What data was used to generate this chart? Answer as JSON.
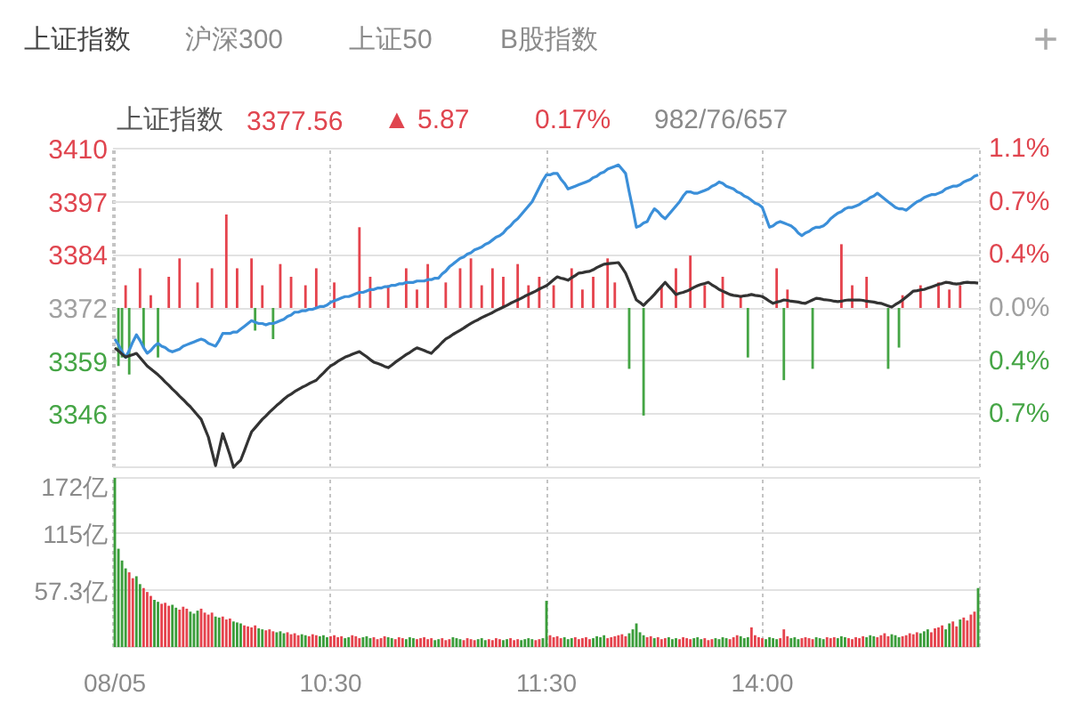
{
  "chart_data": [
    {
      "type": "line",
      "title": "上证指数",
      "annotations": [
        "上证指数",
        "沪深300",
        "上证50",
        "B股指数",
        "+",
        "3377.56",
        "▲ 5.87",
        "0.17%",
        "982/76/657"
      ],
      "categories": [
        null,
        null,
        null,
        null,
        null,
        null,
        null,
        null,
        null,
        null,
        null,
        null,
        null,
        null,
        null,
        null,
        null,
        null,
        null,
        null,
        null,
        null,
        null,
        null,
        null,
        null,
        null,
        null,
        null,
        null,
        null,
        null,
        null,
        null,
        null,
        null,
        null,
        null,
        null,
        null,
        null,
        null,
        null,
        null,
        null,
        null,
        null,
        null,
        null,
        null,
        null,
        null,
        null,
        null,
        null,
        null,
        null,
        null,
        null,
        null,
        null,
        null,
        null,
        null,
        null,
        null,
        null,
        null,
        null,
        null,
        null,
        null,
        null,
        null,
        null,
        null,
        null,
        null,
        null,
        null,
        null,
        null,
        null,
        null,
        null,
        null,
        null,
        null,
        null,
        null,
        null,
        null,
        null,
        null,
        null,
        null,
        null,
        null,
        null,
        null,
        null,
        null,
        null,
        null,
        null,
        null,
        null,
        null,
        null,
        null,
        null,
        null,
        null,
        null,
        null,
        null,
        null,
        null,
        null,
        null,
        null,
        null,
        null,
        null,
        null,
        null,
        null,
        null,
        null,
        null,
        null,
        null,
        null,
        null,
        null,
        null,
        null,
        null,
        null,
        null,
        null,
        null,
        null,
        null,
        null,
        null,
        null,
        null,
        null,
        null,
        null,
        null,
        null,
        null,
        null,
        null,
        null,
        null,
        null,
        null,
        null,
        null,
        null,
        null,
        null,
        null,
        null,
        null,
        null,
        null,
        null,
        null,
        null,
        null,
        null,
        null,
        null,
        null,
        null,
        null,
        null,
        null,
        null,
        null,
        null,
        null,
        null,
        null,
        null,
        null,
        null,
        null,
        null,
        null,
        null,
        null,
        null,
        null,
        null,
        null,
        null,
        null,
        null,
        null,
        null,
        null,
        null,
        null,
        null,
        null,
        null,
        null,
        null,
        null,
        null,
        null,
        null,
        null,
        null,
        null,
        null,
        null,
        null,
        null,
        null,
        null,
        null,
        null,
        null,
        null,
        null,
        null,
        null,
        null,
        null,
        null,
        null,
        null,
        null,
        null,
        null
      ],
      "ylim": [
        3333.8,
        3409.6
      ],
      "yticks": [
        {
          "value": 3346.4,
          "label": "3346"
        },
        {
          "value": 3359.1,
          "label": "3359"
        },
        {
          "value": 3371.7,
          "label": "3372"
        },
        {
          "value": 3384.3,
          "label": "3384"
        },
        {
          "value": 3397.0,
          "label": "3397"
        },
        {
          "value": 3409.6,
          "label": "3410"
        }
      ],
      "y2lim": [
        -1.125,
        1.125
      ],
      "y2ticks": [
        {
          "value": -0.75,
          "label": "0.7%"
        },
        {
          "value": -0.375,
          "label": "0.4%"
        },
        {
          "value": 0,
          "label": "0.0%"
        },
        {
          "value": 0.375,
          "label": "0.4%"
        },
        {
          "value": 0.75,
          "label": "0.7%"
        },
        {
          "value": 1.125,
          "label": "1.1%"
        }
      ],
      "grid": true,
      "tick_labels": "y",
      "series": [
        {
          "type": "bar",
          "axis": "y2",
          "color": "#e5434d",
          "values": [
            null,
            null,
            null,
            0.16,
            null,
            null,
            null,
            0.28,
            null,
            null,
            0.09,
            null,
            null,
            null,
            null,
            0.22,
            null,
            null,
            0.35,
            null,
            null,
            null,
            null,
            0.18,
            null,
            null,
            null,
            0.28,
            null,
            null,
            null,
            0.66,
            null,
            null,
            0.28,
            null,
            null,
            null,
            0.35,
            null,
            null,
            0.16,
            null,
            null,
            null,
            null,
            0.31,
            null,
            null,
            0.22,
            null,
            null,
            null,
            0.16,
            null,
            null,
            0.28,
            null,
            null,
            null,
            null,
            0.18,
            null,
            null,
            null,
            null,
            null,
            null,
            0.57,
            null,
            null,
            0.22,
            null,
            null,
            null,
            null,
            0.16,
            null,
            null,
            null,
            null,
            0.28,
            null,
            null,
            0.13,
            null,
            null,
            0.31,
            null,
            null,
            null,
            null,
            0.18,
            null,
            null,
            null,
            0.28,
            null,
            null,
            0.35,
            null,
            null,
            0.16,
            null,
            null,
            0.28,
            null,
            null,
            0.22,
            null,
            null,
            null,
            0.31,
            null,
            null,
            0.16,
            null,
            null,
            0.22,
            null,
            null,
            null,
            0.16,
            null,
            null,
            null,
            null,
            0.28,
            null,
            null,
            0.13,
            null,
            null,
            0.22,
            null,
            null,
            null,
            0.35,
            null,
            0.18,
            null,
            null,
            null,
            null,
            null,
            null,
            null,
            null,
            null,
            null,
            null,
            null,
            0.16,
            null,
            null,
            null,
            0.28,
            null,
            null,
            null,
            0.37,
            null,
            null,
            null,
            0.16,
            null,
            null,
            null,
            null,
            0.22,
            null,
            null,
            null,
            null,
            0.09,
            null,
            null,
            null,
            null,
            null,
            null,
            null,
            null,
            null,
            0.28,
            null,
            null,
            0.13,
            null,
            null,
            null,
            null,
            null,
            null,
            null,
            null,
            null,
            null,
            null,
            null,
            null,
            null,
            0.45,
            null,
            null,
            0.16,
            null,
            null,
            null,
            0.22,
            null,
            null,
            null,
            null,
            null,
            null,
            null,
            null,
            null,
            0.09,
            null,
            null,
            null,
            null,
            0.16,
            null,
            null,
            null,
            null,
            0.18,
            null,
            null,
            0.13,
            null,
            null,
            0.16,
            null,
            null,
            null,
            null,
            null
          ]
        },
        {
          "type": "bar",
          "axis": "y2",
          "color": "#45a545",
          "values": [
            null,
            -0.41,
            -0.35,
            null,
            -0.47,
            null,
            null,
            null,
            -0.28,
            null,
            null,
            null,
            -0.35,
            null,
            null,
            null,
            null,
            null,
            null,
            null,
            null,
            null,
            null,
            null,
            null,
            null,
            null,
            null,
            null,
            null,
            null,
            null,
            null,
            null,
            null,
            null,
            null,
            null,
            null,
            -0.16,
            null,
            null,
            null,
            null,
            -0.22,
            null,
            null,
            null,
            null,
            null,
            null,
            null,
            null,
            null,
            null,
            null,
            null,
            null,
            null,
            null,
            null,
            null,
            null,
            null,
            null,
            null,
            null,
            null,
            null,
            null,
            null,
            null,
            null,
            null,
            null,
            null,
            null,
            null,
            null,
            null,
            null,
            null,
            null,
            null,
            null,
            null,
            null,
            null,
            null,
            null,
            null,
            null,
            null,
            null,
            null,
            null,
            null,
            null,
            null,
            null,
            null,
            null,
            null,
            null,
            null,
            null,
            null,
            null,
            null,
            null,
            null,
            null,
            null,
            null,
            null,
            null,
            null,
            null,
            null,
            null,
            null,
            null,
            null,
            null,
            null,
            null,
            null,
            null,
            null,
            null,
            null,
            null,
            null,
            null,
            null,
            null,
            null,
            null,
            null,
            null,
            null,
            null,
            null,
            -0.43,
            null,
            null,
            null,
            -0.76,
            null,
            null,
            null,
            null,
            null,
            null,
            null,
            null,
            null,
            null,
            null,
            null,
            null,
            null,
            null,
            null,
            null,
            null,
            null,
            null,
            null,
            null,
            null,
            null,
            null,
            null,
            null,
            null,
            -0.35,
            null,
            null,
            null,
            null,
            null,
            null,
            null,
            null,
            null,
            -0.51,
            null,
            null,
            null,
            null,
            null,
            null,
            null,
            -0.43,
            null,
            null,
            null,
            null,
            null,
            null,
            null,
            null,
            null,
            null,
            null,
            null,
            null,
            null,
            null,
            null,
            null,
            null,
            null,
            null,
            -0.43,
            null,
            null,
            -0.28,
            null,
            null,
            null,
            null,
            null,
            null,
            null,
            null,
            null,
            null,
            null,
            null,
            null,
            null,
            null,
            null,
            null,
            null,
            null,
            null,
            null,
            null
          ]
        },
        {
          "type": "line",
          "axis": "y2",
          "color": "#3b8fd9",
          "values": [
            -0.22,
            -0.26,
            -0.31,
            -0.35,
            -0.3,
            -0.24,
            -0.19,
            -0.23,
            -0.28,
            -0.32,
            -0.3,
            -0.27,
            -0.25,
            -0.27,
            -0.28,
            -0.3,
            -0.31,
            -0.3,
            -0.29,
            -0.27,
            -0.26,
            -0.25,
            -0.24,
            -0.23,
            -0.22,
            -0.23,
            -0.25,
            -0.26,
            -0.27,
            -0.23,
            -0.18,
            -0.18,
            -0.18,
            -0.17,
            -0.17,
            -0.15,
            -0.13,
            -0.11,
            -0.09,
            -0.1,
            -0.11,
            -0.11,
            -0.12,
            -0.11,
            -0.11,
            -0.1,
            -0.09,
            -0.08,
            -0.06,
            -0.05,
            -0.03,
            -0.03,
            -0.02,
            -0.02,
            -0.01,
            -0.01,
            0.0,
            0.01,
            0.01,
            0.02,
            0.04,
            0.05,
            0.06,
            0.07,
            0.08,
            0.08,
            0.09,
            0.1,
            0.11,
            0.11,
            0.12,
            0.13,
            0.13,
            0.14,
            0.14,
            0.15,
            0.15,
            0.16,
            0.16,
            0.17,
            0.17,
            0.18,
            0.18,
            0.18,
            0.19,
            0.19,
            0.19,
            0.2,
            0.2,
            0.21,
            0.21,
            0.24,
            0.26,
            0.29,
            0.31,
            0.33,
            0.35,
            0.36,
            0.38,
            0.39,
            0.41,
            0.42,
            0.43,
            0.45,
            0.46,
            0.48,
            0.5,
            0.51,
            0.53,
            0.56,
            0.58,
            0.61,
            0.63,
            0.66,
            0.69,
            0.72,
            0.75,
            0.8,
            0.85,
            0.9,
            0.94,
            0.94,
            0.95,
            0.95,
            0.91,
            0.88,
            0.84,
            0.85,
            0.86,
            0.87,
            0.88,
            0.89,
            0.9,
            0.92,
            0.93,
            0.95,
            0.96,
            0.98,
            0.99,
            1.0,
            1.01,
            0.98,
            0.95,
            0.82,
            0.7,
            0.57,
            0.58,
            0.6,
            0.61,
            0.66,
            0.7,
            0.68,
            0.65,
            0.63,
            0.66,
            0.69,
            0.72,
            0.75,
            0.79,
            0.82,
            0.82,
            0.81,
            0.81,
            0.82,
            0.83,
            0.84,
            0.86,
            0.87,
            0.89,
            0.88,
            0.86,
            0.85,
            0.84,
            0.82,
            0.81,
            0.79,
            0.78,
            0.76,
            0.74,
            0.73,
            0.71,
            0.64,
            0.57,
            0.58,
            0.6,
            0.61,
            0.6,
            0.59,
            0.58,
            0.56,
            0.53,
            0.51,
            0.53,
            0.54,
            0.56,
            0.57,
            0.57,
            0.58,
            0.6,
            0.63,
            0.65,
            0.67,
            0.68,
            0.7,
            0.71,
            0.71,
            0.72,
            0.73,
            0.75,
            0.76,
            0.78,
            0.79,
            0.81,
            0.79,
            0.77,
            0.75,
            0.73,
            0.71,
            0.7,
            0.7,
            0.69,
            0.71,
            0.73,
            0.75,
            0.76,
            0.78,
            0.79,
            0.8,
            0.8,
            0.81,
            0.82,
            0.84,
            0.85,
            0.86,
            0.86,
            0.87,
            0.89,
            0.9,
            0.91,
            0.93,
            0.94
          ]
        },
        {
          "type": "line",
          "color": "#333333",
          "values": [
            3362.2,
            3361.5,
            3360.7,
            3360.0,
            3360.3,
            3360.6,
            3360.9,
            3359.9,
            3358.9,
            3357.9,
            3357.2,
            3356.5,
            3355.8,
            3355.0,
            3354.1,
            3353.3,
            3352.4,
            3351.6,
            3350.7,
            3349.9,
            3349.0,
            3348.2,
            3347.2,
            3346.2,
            3345.2,
            3343.1,
            3341.0,
            3337.6,
            3334.2,
            3338.0,
            3341.8,
            3339.3,
            3336.7,
            3333.8,
            3334.7,
            3335.5,
            3337.7,
            3340.0,
            3342.2,
            3343.2,
            3344.2,
            3345.2,
            3346.0,
            3346.9,
            3347.7,
            3348.5,
            3349.2,
            3350.0,
            3350.7,
            3351.2,
            3351.8,
            3352.3,
            3352.8,
            3353.2,
            3353.7,
            3354.1,
            3354.5,
            3355.4,
            3356.2,
            3357.1,
            3357.9,
            3358.4,
            3359.0,
            3359.5,
            3360.0,
            3360.3,
            3360.7,
            3361.0,
            3361.3,
            3360.7,
            3360.1,
            3359.4,
            3358.8,
            3358.5,
            3358.2,
            3357.8,
            3357.5,
            3358.1,
            3358.8,
            3359.4,
            3360.0,
            3360.6,
            3361.1,
            3361.7,
            3362.2,
            3361.9,
            3361.6,
            3361.2,
            3360.9,
            3361.8,
            3362.6,
            3363.5,
            3364.3,
            3364.8,
            3365.4,
            3365.9,
            3366.4,
            3366.9,
            3367.5,
            3368.0,
            3368.5,
            3368.9,
            3369.4,
            3369.8,
            3370.2,
            3370.6,
            3371.1,
            3371.5,
            3371.9,
            3372.3,
            3372.8,
            3373.2,
            3373.6,
            3374.0,
            3374.5,
            3374.9,
            3375.3,
            3375.7,
            3376.2,
            3376.6,
            3377.0,
            3377.7,
            3378.4,
            3379.1,
            3378.8,
            3378.6,
            3378.3,
            3378.9,
            3379.4,
            3380.0,
            3380.1,
            3380.3,
            3380.4,
            3380.8,
            3381.3,
            3381.7,
            3382.1,
            3382.2,
            3382.3,
            3382.4,
            3382.5,
            3381.3,
            3380.0,
            3377.9,
            3375.7,
            3373.6,
            3373.0,
            3372.3,
            3373.2,
            3374.0,
            3374.9,
            3375.9,
            3376.8,
            3377.8,
            3376.8,
            3375.9,
            3374.9,
            3375.2,
            3375.4,
            3375.7,
            3376.1,
            3376.6,
            3377.0,
            3377.3,
            3377.5,
            3377.8,
            3377.2,
            3376.7,
            3376.1,
            3375.7,
            3375.3,
            3374.9,
            3374.7,
            3374.6,
            3374.4,
            3374.6,
            3374.7,
            3374.9,
            3374.7,
            3374.6,
            3374.4,
            3373.9,
            3373.3,
            3372.8,
            3373.1,
            3373.3,
            3373.6,
            3373.5,
            3373.3,
            3373.2,
            3373.1,
            3372.9,
            3372.8,
            3373.2,
            3373.6,
            3374.0,
            3373.9,
            3373.7,
            3373.6,
            3373.5,
            3373.3,
            3373.2,
            3373.3,
            3373.5,
            3373.6,
            3373.6,
            3373.6,
            3373.6,
            3373.5,
            3373.3,
            3373.2,
            3373.1,
            3372.9,
            3372.8,
            3372.5,
            3372.2,
            3371.9,
            3372.5,
            3373.0,
            3373.6,
            3374.3,
            3375.0,
            3375.7,
            3375.8,
            3376.0,
            3376.1,
            3376.4,
            3376.7,
            3377.0,
            3377.3,
            3377.5,
            3377.8,
            3377.7,
            3377.5,
            3377.4,
            3377.5,
            3377.7,
            3377.8,
            3377.7,
            3377.7,
            3377.6
          ]
        }
      ]
    },
    {
      "type": "bar",
      "categories": [
        "08/05",
        null,
        null,
        null,
        null,
        null,
        null,
        null,
        null,
        null,
        null,
        null,
        null,
        null,
        null,
        null,
        null,
        null,
        null,
        null,
        null,
        null,
        null,
        null,
        null,
        null,
        null,
        null,
        null,
        null,
        null,
        null,
        null,
        null,
        null,
        null,
        null,
        null,
        null,
        null,
        null,
        null,
        null,
        null,
        null,
        null,
        null,
        null,
        null,
        null,
        null,
        null,
        null,
        null,
        null,
        null,
        null,
        null,
        null,
        null,
        "10:30",
        null,
        null,
        null,
        null,
        null,
        null,
        null,
        null,
        null,
        null,
        null,
        null,
        null,
        null,
        null,
        null,
        null,
        null,
        null,
        null,
        null,
        null,
        null,
        null,
        null,
        null,
        null,
        null,
        null,
        null,
        null,
        null,
        null,
        null,
        null,
        null,
        null,
        null,
        null,
        null,
        null,
        null,
        null,
        null,
        null,
        null,
        null,
        null,
        null,
        null,
        null,
        null,
        null,
        null,
        null,
        null,
        null,
        null,
        null,
        "11:30",
        null,
        null,
        null,
        null,
        null,
        null,
        null,
        null,
        null,
        null,
        null,
        null,
        null,
        null,
        null,
        null,
        null,
        null,
        null,
        null,
        null,
        null,
        null,
        null,
        null,
        null,
        null,
        null,
        null,
        null,
        null,
        null,
        null,
        null,
        null,
        null,
        null,
        null,
        null,
        null,
        null,
        null,
        null,
        null,
        null,
        null,
        null,
        null,
        null,
        null,
        null,
        null,
        null,
        null,
        null,
        null,
        null,
        null,
        null,
        "14:00",
        null,
        null,
        null,
        null,
        null,
        null,
        null,
        null,
        null,
        null,
        null,
        null,
        null,
        null,
        null,
        null,
        null,
        null,
        null,
        null,
        null,
        null,
        null,
        null,
        null,
        null,
        null,
        null,
        null,
        null,
        null,
        null,
        null,
        null,
        null,
        null,
        null,
        null,
        null,
        null,
        null,
        null,
        null,
        null,
        null,
        null,
        null,
        null,
        null,
        null,
        null,
        null,
        null,
        null,
        null,
        null,
        null,
        null,
        null,
        null
      ],
      "ylim": [
        0,
        172
      ],
      "yticks": [
        {
          "value": 57.3,
          "label": "57.3亿"
        },
        {
          "value": 115,
          "label": "115亿"
        },
        {
          "value": 172,
          "label": "172亿"
        }
      ],
      "grid": true,
      "values": [
        172,
        100,
        88,
        80,
        76,
        70,
        72,
        64,
        60,
        56,
        52,
        48,
        46,
        44,
        45,
        42,
        43,
        40,
        38,
        41,
        39,
        36,
        34,
        37,
        39,
        35,
        33,
        35,
        31,
        30,
        31,
        28,
        29,
        26,
        25,
        24,
        22,
        21,
        20,
        22,
        19,
        18,
        17,
        18,
        16,
        15,
        16,
        14,
        15,
        13,
        14,
        12,
        13,
        12,
        11,
        13,
        12,
        11,
        12,
        10,
        11,
        12,
        10,
        11,
        9,
        10,
        12,
        11,
        9,
        10,
        11,
        9,
        10,
        8,
        9,
        11,
        10,
        9,
        8,
        10,
        9,
        8,
        10,
        9,
        8,
        9,
        10,
        8,
        9,
        7,
        8,
        9,
        7,
        8,
        10,
        9,
        8,
        7,
        9,
        8,
        7,
        8,
        9,
        7,
        8,
        7,
        9,
        8,
        7,
        8,
        9,
        7,
        8,
        7,
        8,
        9,
        8,
        7,
        8,
        9,
        47,
        12,
        10,
        11,
        9,
        10,
        8,
        9,
        10,
        8,
        9,
        10,
        8,
        9,
        11,
        10,
        12,
        9,
        10,
        11,
        12,
        13,
        11,
        14,
        18,
        24,
        15,
        12,
        10,
        11,
        9,
        10,
        8,
        9,
        10,
        8,
        9,
        8,
        10,
        9,
        8,
        9,
        10,
        8,
        9,
        7,
        8,
        9,
        8,
        10,
        9,
        8,
        10,
        12,
        11,
        9,
        10,
        20,
        12,
        10,
        9,
        8,
        10,
        9,
        8,
        9,
        18,
        11,
        9,
        10,
        8,
        9,
        10,
        9,
        8,
        10,
        9,
        8,
        10,
        9,
        10,
        9,
        11,
        10,
        9,
        8,
        10,
        9,
        11,
        10,
        12,
        11,
        10,
        12,
        14,
        11,
        13,
        12,
        10,
        11,
        12,
        14,
        13,
        15,
        14,
        16,
        18,
        15,
        19,
        20,
        22,
        18,
        24,
        26,
        21,
        28,
        30,
        27,
        33,
        36,
        60
      ],
      "colors": [
        "#3a9d3a",
        "#3a9d3a",
        "#3a9d3a",
        "#3a9d3a",
        "#e5434d",
        "#e5434d",
        "#3a9d3a",
        "#3a9d3a",
        "#e5434d",
        "#e5434d",
        "#e5434d",
        "#3a9d3a",
        "#3a9d3a",
        "#e5434d",
        "#e5434d",
        "#e5434d",
        "#3a9d3a",
        "#3a9d3a",
        "#e5434d",
        "#e5434d",
        "#e5434d",
        "#3a9d3a",
        "#3a9d3a",
        "#3a9d3a",
        "#e5434d",
        "#e5434d",
        "#e5434d",
        "#e5434d",
        "#3a9d3a",
        "#3a9d3a",
        "#e5434d",
        "#e5434d",
        "#e5434d",
        "#3a9d3a",
        "#3a9d3a",
        "#3a9d3a",
        "#e5434d",
        "#e5434d",
        "#e5434d",
        "#e5434d",
        "#3a9d3a",
        "#3a9d3a",
        "#e5434d",
        "#e5434d",
        "#e5434d",
        "#3a9d3a",
        "#3a9d3a",
        "#3a9d3a",
        "#e5434d",
        "#e5434d",
        "#e5434d",
        "#e5434d",
        "#3a9d3a",
        "#3a9d3a",
        "#e5434d",
        "#e5434d",
        "#e5434d",
        "#3a9d3a",
        "#3a9d3a",
        "#3a9d3a",
        "#e5434d",
        "#e5434d",
        "#e5434d",
        "#e5434d",
        "#3a9d3a",
        "#3a9d3a",
        "#e5434d",
        "#e5434d",
        "#e5434d",
        "#3a9d3a",
        "#3a9d3a",
        "#3a9d3a",
        "#e5434d",
        "#e5434d",
        "#e5434d",
        "#e5434d",
        "#3a9d3a",
        "#3a9d3a",
        "#e5434d",
        "#e5434d",
        "#e5434d",
        "#3a9d3a",
        "#3a9d3a",
        "#3a9d3a",
        "#e5434d",
        "#e5434d",
        "#e5434d",
        "#e5434d",
        "#e5434d",
        "#3a9d3a",
        "#3a9d3a",
        "#e5434d",
        "#e5434d",
        "#e5434d",
        "#3a9d3a",
        "#3a9d3a",
        "#3a9d3a",
        "#e5434d",
        "#e5434d",
        "#e5434d",
        "#e5434d",
        "#3a9d3a",
        "#3a9d3a",
        "#3a9d3a",
        "#e5434d",
        "#e5434d",
        "#e5434d",
        "#e5434d",
        "#3a9d3a",
        "#3a9d3a",
        "#e5434d",
        "#e5434d",
        "#e5434d",
        "#3a9d3a",
        "#3a9d3a",
        "#3a9d3a",
        "#3a9d3a",
        "#e5434d",
        "#e5434d",
        "#3a9d3a",
        "#3a9d3a",
        "#e5434d",
        "#e5434d",
        "#e5434d",
        "#e5434d",
        "#3a9d3a",
        "#3a9d3a",
        "#3a9d3a",
        "#e5434d",
        "#e5434d",
        "#e5434d",
        "#e5434d",
        "#e5434d",
        "#3a9d3a",
        "#3a9d3a",
        "#3a9d3a",
        "#3a9d3a",
        "#e5434d",
        "#e5434d",
        "#e5434d",
        "#e5434d",
        "#e5434d",
        "#e5434d",
        "#3a9d3a",
        "#3a9d3a",
        "#3a9d3a",
        "#3a9d3a",
        "#3a9d3a",
        "#e5434d",
        "#e5434d",
        "#3a9d3a",
        "#e5434d",
        "#e5434d",
        "#e5434d",
        "#3a9d3a",
        "#3a9d3a",
        "#3a9d3a",
        "#e5434d",
        "#e5434d",
        "#e5434d",
        "#e5434d",
        "#3a9d3a",
        "#3a9d3a",
        "#3a9d3a",
        "#e5434d",
        "#e5434d",
        "#e5434d",
        "#3a9d3a",
        "#3a9d3a",
        "#3a9d3a",
        "#3a9d3a",
        "#e5434d",
        "#e5434d",
        "#e5434d",
        "#3a9d3a",
        "#3a9d3a",
        "#3a9d3a",
        "#e5434d",
        "#e5434d",
        "#e5434d",
        "#e5434d",
        "#3a9d3a",
        "#3a9d3a",
        "#3a9d3a",
        "#3a9d3a",
        "#e5434d",
        "#e5434d",
        "#e5434d",
        "#3a9d3a",
        "#3a9d3a",
        "#3a9d3a",
        "#e5434d",
        "#e5434d",
        "#e5434d",
        "#e5434d",
        "#3a9d3a",
        "#3a9d3a",
        "#3a9d3a",
        "#e5434d",
        "#e5434d",
        "#e5434d",
        "#3a9d3a",
        "#3a9d3a",
        "#3a9d3a",
        "#e5434d",
        "#e5434d",
        "#e5434d",
        "#e5434d",
        "#e5434d",
        "#3a9d3a",
        "#3a9d3a",
        "#3a9d3a",
        "#e5434d",
        "#e5434d",
        "#e5434d",
        "#e5434d",
        "#3a9d3a",
        "#3a9d3a",
        "#3a9d3a",
        "#e5434d",
        "#e5434d",
        "#e5434d",
        "#e5434d",
        "#e5434d",
        "#3a9d3a",
        "#3a9d3a",
        "#3a9d3a",
        "#e5434d",
        "#e5434d",
        "#e5434d",
        "#e5434d",
        "#3a9d3a",
        "#3a9d3a",
        "#e5434d",
        "#e5434d",
        "#3a9d3a",
        "#e5434d",
        "#e5434d",
        "#e5434d",
        "#e5434d",
        "#3a9d3a"
      ]
    }
  ]
}
